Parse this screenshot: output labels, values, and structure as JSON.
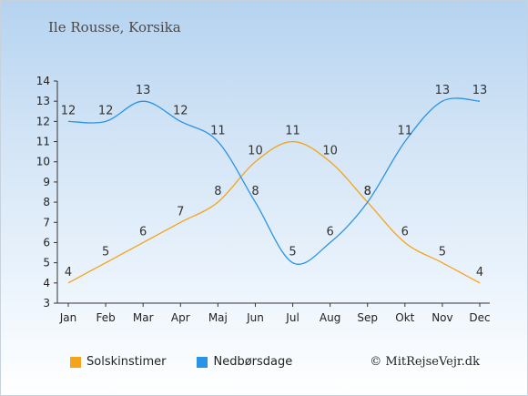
{
  "header": {
    "subtitle": "Ile Rousse, Korsika"
  },
  "legend": {
    "sun_label": "Solskinstimer",
    "rain_label": "Nedbørsdage"
  },
  "credit": "© MitRejseVejr.dk",
  "colors": {
    "sun": "#f5a31a",
    "rain": "#2a93e6",
    "axis": "#333333"
  },
  "chart_data": {
    "type": "line",
    "categories": [
      "Jan",
      "Feb",
      "Mar",
      "Apr",
      "Maj",
      "Jun",
      "Jul",
      "Aug",
      "Sep",
      "Okt",
      "Nov",
      "Dec"
    ],
    "series": [
      {
        "name": "Solskinstimer",
        "values": [
          4,
          5,
          6,
          7,
          8,
          10,
          11,
          10,
          8,
          6,
          5,
          4
        ]
      },
      {
        "name": "Nedbørsdage",
        "values": [
          12,
          12,
          13,
          12,
          11,
          8,
          5,
          6,
          8,
          11,
          13,
          13
        ]
      }
    ],
    "ylim": [
      3,
      14
    ],
    "yticks": [
      3,
      4,
      5,
      6,
      7,
      8,
      9,
      10,
      11,
      12,
      13,
      14
    ],
    "grid": false,
    "legend_position": "bottom-left"
  }
}
